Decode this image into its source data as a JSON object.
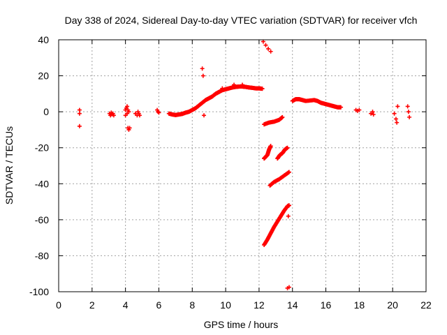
{
  "chart_data": {
    "type": "scatter",
    "title": "Day 338 of 2024, Sidereal Day-to-day VTEC variation (SDTVAR) for receiver vfch",
    "xlabel": "GPS time / hours",
    "ylabel": "SDTVAR / TECUs",
    "xlim": [
      0,
      22
    ],
    "ylim": [
      -100,
      40
    ],
    "xticks": [
      "0",
      "2",
      "4",
      "6",
      "8",
      "10",
      "12",
      "14",
      "16",
      "18",
      "20",
      "22"
    ],
    "yticks": [
      "40",
      "20",
      "0",
      "-20",
      "-40",
      "-60",
      "-80",
      "-100"
    ],
    "grid": true,
    "marker": "plus",
    "color": "#ff0000",
    "segments": [
      {
        "name": "early-scattered",
        "points": [
          [
            1.25,
            1
          ],
          [
            1.25,
            -1
          ],
          [
            1.25,
            -8
          ],
          [
            3.05,
            -1
          ],
          [
            3.1,
            -2
          ],
          [
            3.15,
            -0.5
          ],
          [
            3.2,
            -1.5
          ],
          [
            3.25,
            -1
          ],
          [
            3.3,
            -2
          ],
          [
            4.0,
            1
          ],
          [
            4.05,
            2
          ],
          [
            4.1,
            3
          ],
          [
            4.15,
            1
          ],
          [
            4.2,
            0
          ],
          [
            4.0,
            -2
          ],
          [
            4.1,
            -1
          ],
          [
            4.15,
            -9
          ],
          [
            4.2,
            -10
          ],
          [
            4.25,
            -9
          ],
          [
            4.6,
            -1
          ],
          [
            4.7,
            -2
          ],
          [
            4.75,
            0
          ],
          [
            4.8,
            -1
          ],
          [
            4.85,
            -2
          ],
          [
            5.9,
            1
          ],
          [
            5.95,
            0
          ],
          [
            6.0,
            -0.5
          ]
        ]
      },
      {
        "name": "main-arc",
        "points": [
          [
            6.6,
            -1
          ],
          [
            6.8,
            -1.5
          ],
          [
            7.0,
            -1.8
          ],
          [
            7.2,
            -1.5
          ],
          [
            7.4,
            -1.2
          ],
          [
            7.6,
            -0.5
          ],
          [
            7.8,
            0
          ],
          [
            8.0,
            1
          ],
          [
            8.2,
            2
          ],
          [
            8.4,
            3.5
          ],
          [
            8.6,
            5
          ],
          [
            8.8,
            6.5
          ],
          [
            9.0,
            7.5
          ],
          [
            9.2,
            8.5
          ],
          [
            9.4,
            10
          ],
          [
            9.6,
            11
          ],
          [
            9.8,
            12
          ],
          [
            10.0,
            12.5
          ],
          [
            10.2,
            13
          ],
          [
            10.4,
            13.5
          ],
          [
            10.6,
            13.8
          ],
          [
            10.8,
            14
          ],
          [
            11.0,
            14
          ],
          [
            11.2,
            13.8
          ],
          [
            11.4,
            13.5
          ],
          [
            11.6,
            13.3
          ],
          [
            11.8,
            13
          ],
          [
            12.0,
            13
          ],
          [
            12.2,
            12.8
          ]
        ]
      },
      {
        "name": "arc-outliers",
        "points": [
          [
            8.6,
            24
          ],
          [
            8.65,
            20
          ],
          [
            8.7,
            -2
          ],
          [
            9.8,
            13
          ],
          [
            10.5,
            15
          ],
          [
            11.0,
            15
          ]
        ]
      },
      {
        "name": "descending-top",
        "points": [
          [
            12.25,
            39
          ],
          [
            12.4,
            37
          ],
          [
            12.55,
            35
          ],
          [
            12.7,
            33.5
          ]
        ]
      },
      {
        "name": "band-minus-5",
        "points": [
          [
            12.3,
            -7
          ],
          [
            12.6,
            -6
          ],
          [
            12.9,
            -5.5
          ],
          [
            13.2,
            -4.5
          ],
          [
            13.4,
            -3
          ]
        ]
      },
      {
        "name": "band-minus-25",
        "points": [
          [
            12.3,
            -26
          ],
          [
            12.4,
            -25
          ],
          [
            12.5,
            -24
          ],
          [
            12.6,
            -21
          ],
          [
            12.7,
            -19
          ]
        ]
      },
      {
        "name": "band-minus-22b",
        "points": [
          [
            13.1,
            -26
          ],
          [
            13.25,
            -24
          ],
          [
            13.4,
            -23
          ],
          [
            13.55,
            -21
          ],
          [
            13.7,
            -20
          ]
        ]
      },
      {
        "name": "band-minus-38",
        "points": [
          [
            12.65,
            -41
          ],
          [
            12.9,
            -39
          ],
          [
            13.2,
            -37.5
          ],
          [
            13.5,
            -35.5
          ],
          [
            13.8,
            -33.5
          ]
        ]
      },
      {
        "name": "steep-line",
        "points": [
          [
            12.3,
            -74
          ],
          [
            12.5,
            -71
          ],
          [
            12.7,
            -67.5
          ],
          [
            12.9,
            -64
          ],
          [
            13.1,
            -61
          ],
          [
            13.3,
            -58
          ],
          [
            13.5,
            -55
          ],
          [
            13.7,
            -52.5
          ],
          [
            13.8,
            -52
          ]
        ]
      },
      {
        "name": "low-outliers",
        "points": [
          [
            13.75,
            -58
          ],
          [
            13.7,
            -98
          ],
          [
            13.8,
            -97.5
          ]
        ]
      },
      {
        "name": "late-arc",
        "points": [
          [
            14.0,
            6
          ],
          [
            14.2,
            7
          ],
          [
            14.4,
            7
          ],
          [
            14.6,
            6.5
          ],
          [
            14.8,
            6
          ],
          [
            15.3,
            6.5
          ],
          [
            15.5,
            6
          ],
          [
            15.7,
            5
          ],
          [
            15.9,
            4.5
          ],
          [
            16.1,
            4
          ],
          [
            16.3,
            3.5
          ],
          [
            16.5,
            3
          ],
          [
            16.7,
            2.5
          ],
          [
            16.9,
            2.5
          ]
        ]
      },
      {
        "name": "late-scattered",
        "points": [
          [
            17.8,
            1
          ],
          [
            17.9,
            0.5
          ],
          [
            18.0,
            1
          ],
          [
            18.7,
            -1
          ],
          [
            18.8,
            0
          ],
          [
            18.85,
            -1.5
          ],
          [
            20.1,
            -1
          ],
          [
            20.2,
            -4
          ],
          [
            20.25,
            -6
          ],
          [
            20.3,
            3
          ],
          [
            20.9,
            3
          ],
          [
            20.95,
            0
          ],
          [
            21.0,
            -3
          ]
        ]
      }
    ]
  }
}
